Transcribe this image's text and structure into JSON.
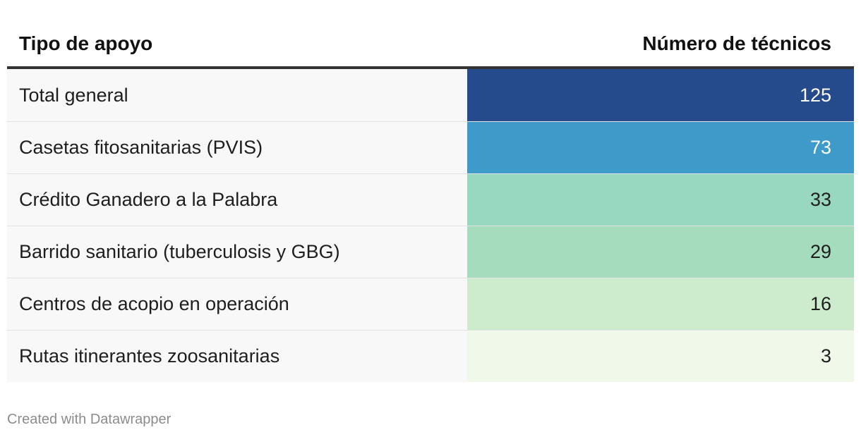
{
  "chart_data": {
    "type": "table",
    "columns": [
      "Tipo de apoyo",
      "Número de técnicos"
    ],
    "rows": [
      {
        "label": "Total general",
        "value": 125,
        "color": "#264b8c",
        "text_color": "#ffffff"
      },
      {
        "label": "Casetas fitosanitarias (PVIS)",
        "value": 73,
        "color": "#3e9ac8",
        "text_color": "#ffffff"
      },
      {
        "label": "Crédito Ganadero a la Palabra",
        "value": 33,
        "color": "#98d7c0",
        "text_color": "#1e1e1e"
      },
      {
        "label": "Barrido sanitario (tuberculosis y GBG)",
        "value": 29,
        "color": "#a6dcbe",
        "text_color": "#1e1e1e"
      },
      {
        "label": "Centros de acopio en operación",
        "value": 16,
        "color": "#cdecce",
        "text_color": "#1e1e1e"
      },
      {
        "label": "Rutas itinerantes zoosanitarias",
        "value": 3,
        "color": "#f0f8ea",
        "text_color": "#1e1e1e"
      }
    ]
  },
  "footer": {
    "credit": "Created with Datawrapper"
  }
}
